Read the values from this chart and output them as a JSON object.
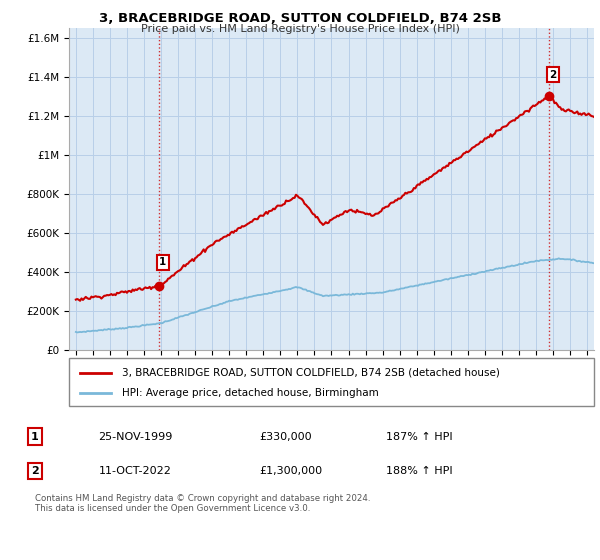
{
  "title": "3, BRACEBRIDGE ROAD, SUTTON COLDFIELD, B74 2SB",
  "subtitle": "Price paid vs. HM Land Registry's House Price Index (HPI)",
  "legend_line1": "3, BRACEBRIDGE ROAD, SUTTON COLDFIELD, B74 2SB (detached house)",
  "legend_line2": "HPI: Average price, detached house, Birmingham",
  "footnote": "Contains HM Land Registry data © Crown copyright and database right 2024.\nThis data is licensed under the Open Government Licence v3.0.",
  "annotation1_label": "1",
  "annotation1_date": "25-NOV-1999",
  "annotation1_price": "£330,000",
  "annotation1_hpi": "187% ↑ HPI",
  "annotation2_label": "2",
  "annotation2_date": "11-OCT-2022",
  "annotation2_price": "£1,300,000",
  "annotation2_hpi": "188% ↑ HPI",
  "sale1_year": 1999.9,
  "sale1_value": 330000,
  "sale2_year": 2022.78,
  "sale2_value": 1300000,
  "hpi_color": "#7ab8d9",
  "price_color": "#cc0000",
  "bg_color": "#dce9f5",
  "grid_color": "#b8cfe8",
  "ylim_max": 1650000,
  "yticks": [
    0,
    200000,
    400000,
    600000,
    800000,
    1000000,
    1200000,
    1400000,
    1600000
  ],
  "ytick_labels": [
    "£0",
    "£200K",
    "£400K",
    "£600K",
    "£800K",
    "£1M",
    "£1.2M",
    "£1.4M",
    "£1.6M"
  ],
  "xmin": 1994.6,
  "xmax": 2025.4
}
